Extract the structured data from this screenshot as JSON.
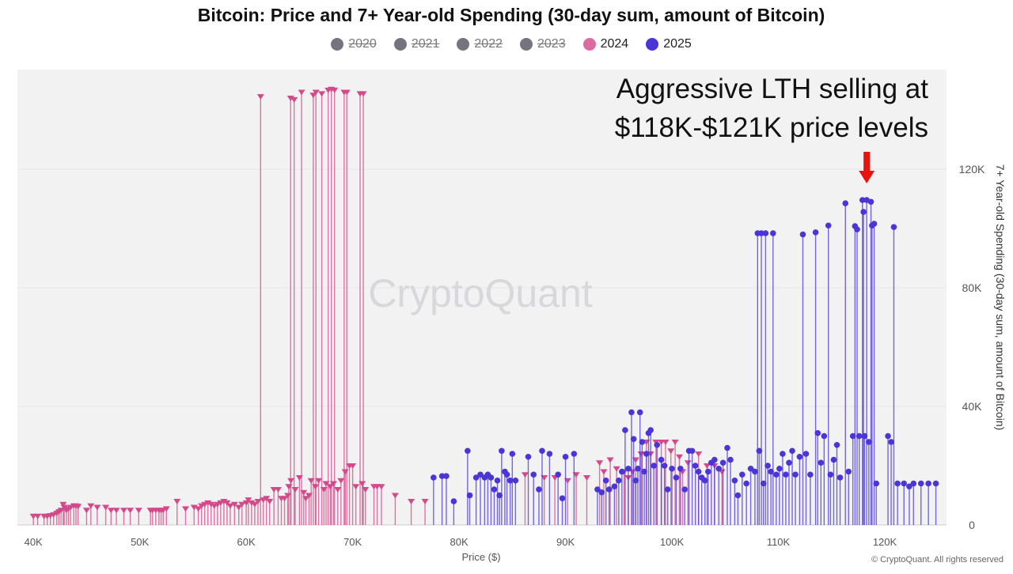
{
  "chart_data": {
    "type": "scatter",
    "style": "lollipop",
    "title": "Bitcoin: Price and 7+ Year-old Spending (30-day sum, amount of Bitcoin)",
    "xlabel": "Price ($)",
    "ylabel": "7+ Year-old Spending (30-day sum, amount of Bitcoin)",
    "xlim": [
      38.5,
      125.8
    ],
    "ylim": [
      0,
      153.6
    ],
    "x_ticks": [
      "40K",
      "50K",
      "60K",
      "70K",
      "80K",
      "90K",
      "100K",
      "110K",
      "120K"
    ],
    "x_tick_values": [
      40,
      50,
      60,
      70,
      80,
      90,
      100,
      110,
      120
    ],
    "y_ticks": [
      "0",
      "40K",
      "80K",
      "120K"
    ],
    "y_tick_values": [
      0,
      40,
      80,
      120
    ],
    "y_axis_side": "right",
    "grid": true,
    "legend_placement": "top",
    "legend": [
      {
        "name": "2020",
        "color": "#75747e",
        "hidden": true
      },
      {
        "name": "2021",
        "color": "#75747e",
        "hidden": true
      },
      {
        "name": "2022",
        "color": "#75747e",
        "hidden": true
      },
      {
        "name": "2023",
        "color": "#75747e",
        "hidden": true
      },
      {
        "name": "2024",
        "color": "#dd6aa0",
        "hidden": false
      },
      {
        "name": "2025",
        "color": "#4a35d8",
        "hidden": false
      }
    ],
    "series": [
      {
        "name": "2024",
        "color": "#d3498a",
        "marker": "triangle-down",
        "points": [
          [
            40.0,
            3
          ],
          [
            40.4,
            3
          ],
          [
            41.0,
            3
          ],
          [
            41.3,
            3
          ],
          [
            41.6,
            3.2
          ],
          [
            41.9,
            3.5
          ],
          [
            42.2,
            4
          ],
          [
            42.4,
            4.5
          ],
          [
            42.6,
            5
          ],
          [
            42.8,
            7
          ],
          [
            42.9,
            6
          ],
          [
            43.1,
            5
          ],
          [
            43.3,
            5.5
          ],
          [
            43.5,
            6
          ],
          [
            43.8,
            6.5
          ],
          [
            44.0,
            6.5
          ],
          [
            44.2,
            6.3
          ],
          [
            45.0,
            5
          ],
          [
            45.4,
            6.5
          ],
          [
            46.0,
            6
          ],
          [
            46.8,
            6
          ],
          [
            47.3,
            5
          ],
          [
            47.8,
            5
          ],
          [
            48.5,
            5
          ],
          [
            49.1,
            5
          ],
          [
            49.9,
            5
          ],
          [
            51.0,
            5
          ],
          [
            51.2,
            5
          ],
          [
            51.5,
            5
          ],
          [
            51.8,
            5
          ],
          [
            52.0,
            5
          ],
          [
            52.2,
            5
          ],
          [
            52.5,
            5.5
          ],
          [
            53.5,
            8
          ],
          [
            54.3,
            5.5
          ],
          [
            55.1,
            6
          ],
          [
            55.5,
            5.5
          ],
          [
            55.8,
            6.5
          ],
          [
            56.1,
            7
          ],
          [
            56.4,
            7.5
          ],
          [
            56.7,
            7
          ],
          [
            57.0,
            6.5
          ],
          [
            57.3,
            7
          ],
          [
            57.6,
            7.5
          ],
          [
            57.9,
            8
          ],
          [
            58.2,
            7.5
          ],
          [
            58.5,
            6.5
          ],
          [
            58.9,
            7
          ],
          [
            59.3,
            6
          ],
          [
            59.6,
            7
          ],
          [
            60.0,
            7.5
          ],
          [
            60.2,
            8.5
          ],
          [
            60.5,
            7.5
          ],
          [
            60.8,
            7
          ],
          [
            61.1,
            8
          ],
          [
            61.35,
            144.5
          ],
          [
            61.6,
            8.5
          ],
          [
            61.9,
            9
          ],
          [
            62.2,
            8
          ],
          [
            62.6,
            12
          ],
          [
            63.0,
            12
          ],
          [
            63.3,
            9
          ],
          [
            63.6,
            9
          ],
          [
            63.9,
            10
          ],
          [
            64.0,
            13
          ],
          [
            64.17,
            144
          ],
          [
            64.2,
            15
          ],
          [
            64.5,
            143.5
          ],
          [
            64.6,
            12
          ],
          [
            65.0,
            16
          ],
          [
            65.2,
            146
          ],
          [
            65.4,
            11
          ],
          [
            65.6,
            9
          ],
          [
            65.9,
            10
          ],
          [
            66.1,
            15
          ],
          [
            66.3,
            145
          ],
          [
            66.5,
            13
          ],
          [
            66.55,
            146
          ],
          [
            66.8,
            15
          ],
          [
            67.1,
            145.5
          ],
          [
            67.3,
            12
          ],
          [
            67.5,
            14
          ],
          [
            67.7,
            146.7
          ],
          [
            67.9,
            13
          ],
          [
            68.0,
            147
          ],
          [
            68.2,
            14
          ],
          [
            68.3,
            146.7
          ],
          [
            68.6,
            12
          ],
          [
            68.9,
            15
          ],
          [
            69.2,
            146
          ],
          [
            69.3,
            18
          ],
          [
            69.45,
            146
          ],
          [
            69.7,
            20
          ],
          [
            70.0,
            20
          ],
          [
            70.3,
            13
          ],
          [
            70.7,
            145.5
          ],
          [
            70.9,
            14
          ],
          [
            71.0,
            145.5
          ],
          [
            71.2,
            12
          ],
          [
            72.0,
            13
          ],
          [
            72.3,
            13
          ],
          [
            72.7,
            13
          ],
          [
            74.0,
            10
          ],
          [
            75.5,
            8
          ],
          [
            76.8,
            8
          ],
          [
            86.2,
            17
          ],
          [
            88.0,
            16
          ],
          [
            89.0,
            16
          ],
          [
            90.2,
            15
          ],
          [
            91.0,
            17
          ],
          [
            92.0,
            16
          ],
          [
            93.2,
            21
          ],
          [
            93.6,
            18
          ],
          [
            94.2,
            22
          ],
          [
            94.8,
            19
          ],
          [
            95.5,
            18
          ],
          [
            95.9,
            16
          ],
          [
            96.3,
            18
          ],
          [
            96.6,
            22
          ],
          [
            97.1,
            24
          ],
          [
            97.6,
            28
          ],
          [
            98.0,
            24
          ],
          [
            98.5,
            28
          ],
          [
            99.0,
            28
          ],
          [
            99.4,
            28
          ],
          [
            99.9,
            25
          ],
          [
            100.3,
            28
          ],
          [
            100.7,
            23
          ],
          [
            101.0,
            18
          ],
          [
            101.5,
            21
          ],
          [
            102.5,
            24
          ],
          [
            103.3,
            20
          ],
          [
            104.0,
            20
          ],
          [
            104.7,
            18
          ]
        ]
      },
      {
        "name": "2025",
        "color": "#4a35d8",
        "marker": "circle",
        "points": [
          [
            77.6,
            16
          ],
          [
            78.4,
            16.5
          ],
          [
            78.8,
            16.5
          ],
          [
            79.5,
            8
          ],
          [
            80.8,
            25
          ],
          [
            81.0,
            10
          ],
          [
            81.6,
            16
          ],
          [
            82.0,
            17
          ],
          [
            82.4,
            16
          ],
          [
            82.7,
            17
          ],
          [
            83.0,
            16
          ],
          [
            83.3,
            12
          ],
          [
            83.6,
            15
          ],
          [
            83.8,
            10
          ],
          [
            84.0,
            25
          ],
          [
            84.3,
            18
          ],
          [
            84.5,
            17
          ],
          [
            84.8,
            15
          ],
          [
            85.0,
            24
          ],
          [
            85.3,
            15
          ],
          [
            86.5,
            23
          ],
          [
            87.0,
            17
          ],
          [
            87.5,
            12
          ],
          [
            87.8,
            25
          ],
          [
            88.5,
            24
          ],
          [
            89.3,
            17
          ],
          [
            89.7,
            9
          ],
          [
            90.0,
            23
          ],
          [
            90.8,
            24
          ],
          [
            93.0,
            12
          ],
          [
            93.4,
            11
          ],
          [
            93.8,
            15
          ],
          [
            94.1,
            12
          ],
          [
            94.6,
            13
          ],
          [
            95.0,
            15
          ],
          [
            95.3,
            18
          ],
          [
            95.6,
            32
          ],
          [
            95.9,
            19
          ],
          [
            96.2,
            38
          ],
          [
            96.4,
            29
          ],
          [
            96.6,
            15
          ],
          [
            96.8,
            19
          ],
          [
            97.0,
            38
          ],
          [
            97.2,
            28
          ],
          [
            97.4,
            18
          ],
          [
            97.6,
            24
          ],
          [
            97.8,
            31
          ],
          [
            98.0,
            32
          ],
          [
            98.3,
            20
          ],
          [
            98.6,
            27
          ],
          [
            99.0,
            22
          ],
          [
            99.3,
            20
          ],
          [
            99.6,
            12
          ],
          [
            100.0,
            19
          ],
          [
            100.4,
            16
          ],
          [
            100.8,
            19
          ],
          [
            101.2,
            12
          ],
          [
            101.6,
            25
          ],
          [
            101.9,
            25
          ],
          [
            102.2,
            20
          ],
          [
            102.5,
            18
          ],
          [
            102.8,
            16
          ],
          [
            103.1,
            15
          ],
          [
            103.4,
            18
          ],
          [
            103.7,
            21
          ],
          [
            104.0,
            22
          ],
          [
            104.4,
            19
          ],
          [
            104.8,
            21
          ],
          [
            105.2,
            26
          ],
          [
            105.5,
            22
          ],
          [
            105.9,
            15
          ],
          [
            106.2,
            10
          ],
          [
            106.6,
            17
          ],
          [
            107.0,
            14
          ],
          [
            107.4,
            19
          ],
          [
            107.8,
            18
          ],
          [
            108.05,
            98.4
          ],
          [
            108.2,
            25
          ],
          [
            108.4,
            98.4
          ],
          [
            108.6,
            14
          ],
          [
            108.8,
            98.4
          ],
          [
            109.0,
            20
          ],
          [
            109.3,
            18
          ],
          [
            109.5,
            98.4
          ],
          [
            109.8,
            17
          ],
          [
            110.1,
            19
          ],
          [
            110.4,
            24
          ],
          [
            110.7,
            17
          ],
          [
            111.0,
            21
          ],
          [
            111.3,
            25
          ],
          [
            111.6,
            17
          ],
          [
            112.0,
            23
          ],
          [
            112.3,
            98
          ],
          [
            112.6,
            24
          ],
          [
            113.0,
            17
          ],
          [
            113.5,
            98.7
          ],
          [
            113.7,
            31
          ],
          [
            114.0,
            21
          ],
          [
            114.3,
            30
          ],
          [
            114.7,
            101
          ],
          [
            114.9,
            17
          ],
          [
            115.2,
            22
          ],
          [
            115.5,
            27
          ],
          [
            115.8,
            16
          ],
          [
            116.3,
            108.5
          ],
          [
            116.6,
            18
          ],
          [
            117.0,
            30
          ],
          [
            117.2,
            100.8
          ],
          [
            117.4,
            99.7
          ],
          [
            117.6,
            30
          ],
          [
            117.9,
            109.6
          ],
          [
            118.0,
            105.6
          ],
          [
            118.1,
            30
          ],
          [
            118.3,
            109.6
          ],
          [
            118.5,
            28
          ],
          [
            118.7,
            109
          ],
          [
            118.8,
            101
          ],
          [
            119.0,
            101.6
          ],
          [
            119.2,
            14
          ],
          [
            120.3,
            30
          ],
          [
            120.6,
            28
          ],
          [
            120.85,
            100.5
          ],
          [
            121.2,
            14
          ],
          [
            121.8,
            14
          ],
          [
            122.3,
            13
          ],
          [
            122.7,
            14
          ],
          [
            123.4,
            14
          ],
          [
            124.1,
            14
          ],
          [
            124.8,
            14
          ]
        ]
      }
    ],
    "annotation": {
      "lines": [
        "Aggressive LTH selling at",
        "$118K-$121K price levels"
      ],
      "arrow_x": 118.3,
      "arrow_color": "#e8130f"
    }
  },
  "watermark": "CryptoQuant",
  "copyright": "© CryptoQuant. All rights reserved"
}
